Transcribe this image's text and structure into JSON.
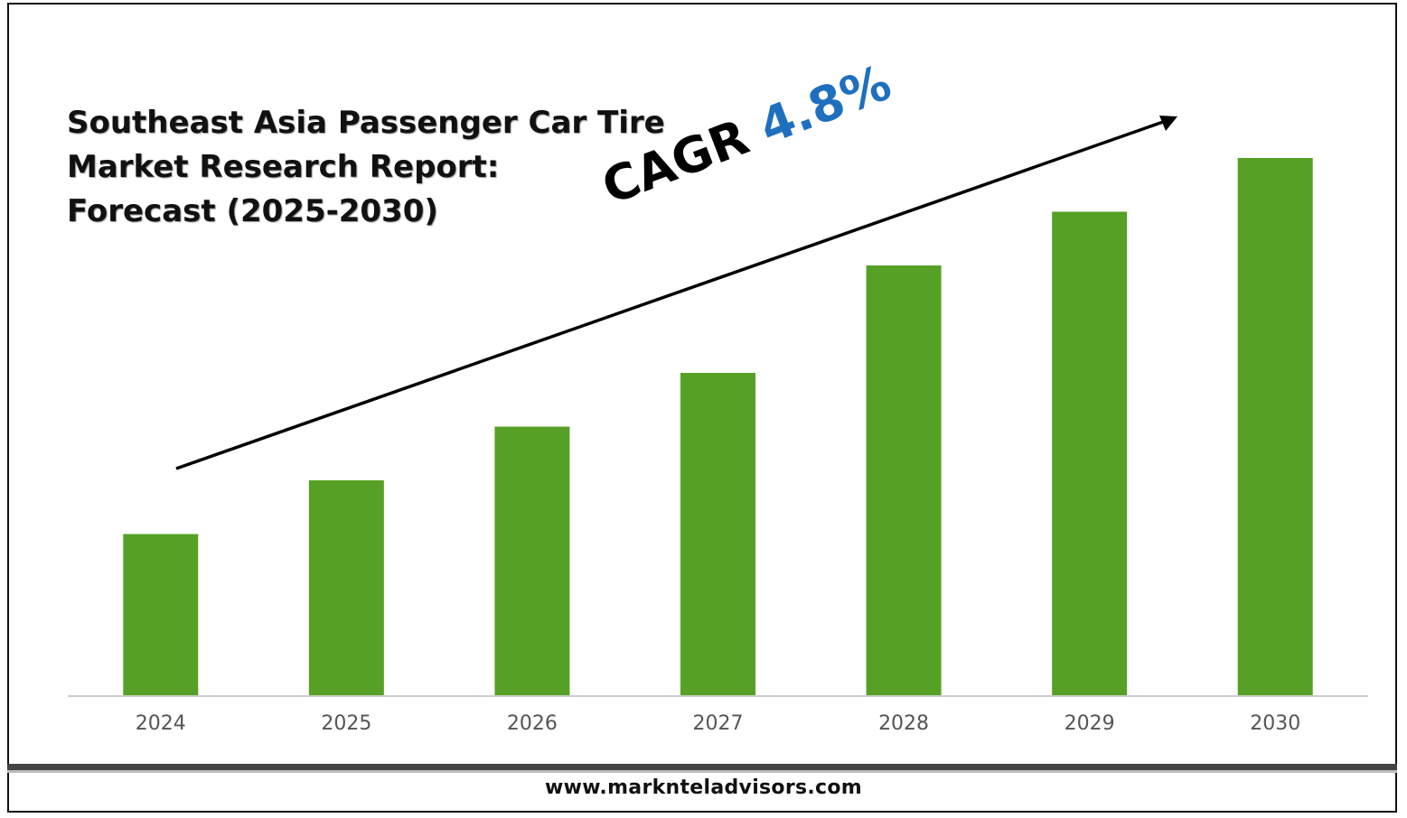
{
  "title": {
    "line1": "Southeast Asia Passenger Car Tire",
    "line2": "Market Research Report:",
    "line3": "Forecast (2025-2030)"
  },
  "cagr": {
    "label": "CAGR",
    "value": "4.8%"
  },
  "footer": {
    "url": "www.marknteladvisors.com"
  },
  "colors": {
    "bar": "#56a125",
    "axis": "#cccccc",
    "cagr_value": "#1f6fbf",
    "arrow": "#000000"
  },
  "chart_data": {
    "type": "bar",
    "categories": [
      "2024",
      "2025",
      "2026",
      "2027",
      "2028",
      "2029",
      "2030"
    ],
    "values": [
      30,
      40,
      50,
      60,
      80,
      90,
      100
    ],
    "title": "Southeast Asia Passenger Car Tire Market Research Report: Forecast (2025-2030)",
    "xlabel": "",
    "ylabel": "",
    "ylim": [
      0,
      100
    ],
    "grid": false,
    "legend": "none"
  }
}
